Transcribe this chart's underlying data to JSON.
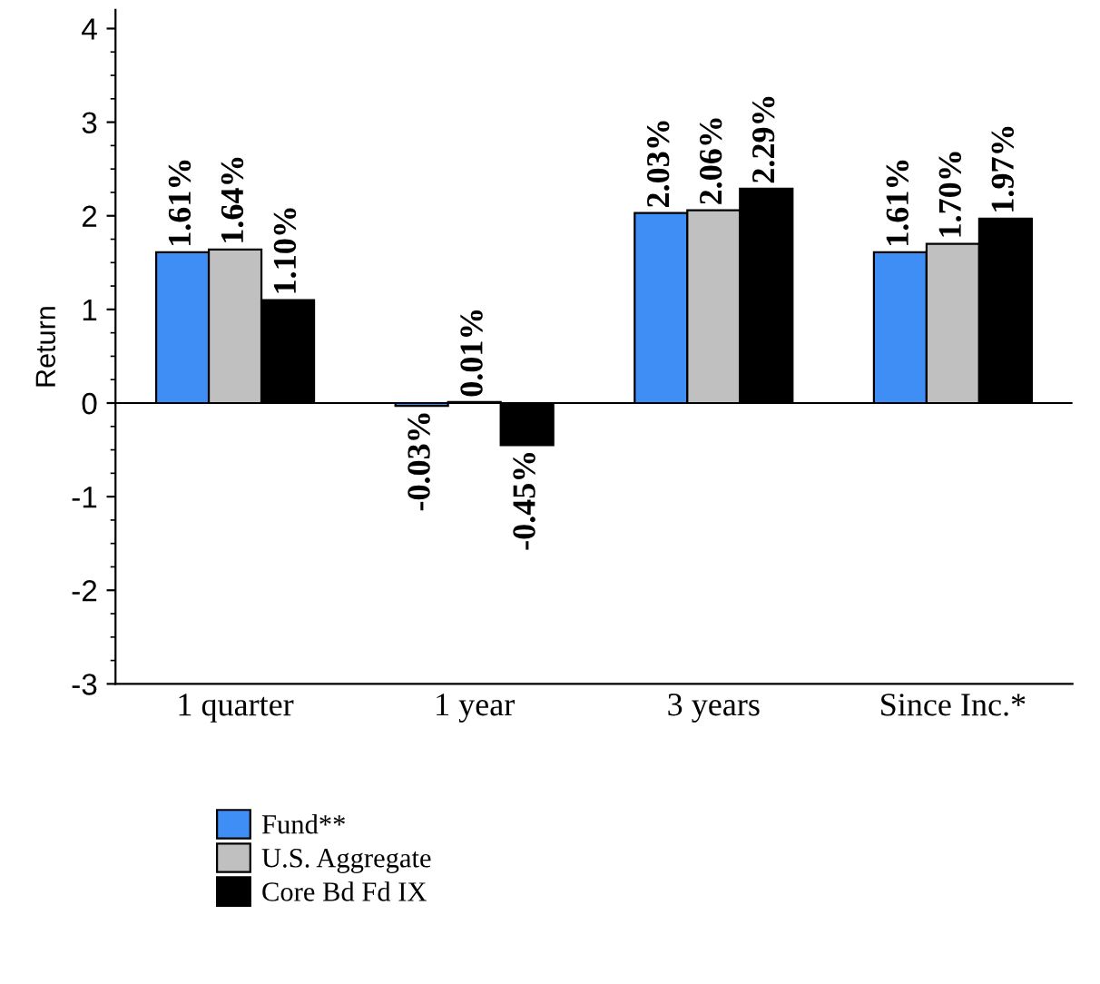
{
  "chart_data": {
    "type": "bar",
    "ylabel": "Return",
    "categories": [
      "1 quarter",
      "1 year",
      "3 years",
      "Since Inc.*"
    ],
    "series": [
      {
        "name": "Fund**",
        "color": "#3f8ef5",
        "values": [
          1.61,
          -0.03,
          2.03,
          1.61
        ],
        "value_labels": [
          "1.61%",
          "-0.03%",
          "2.03%",
          "1.61%"
        ]
      },
      {
        "name": "U.S. Aggregate",
        "color": "#c0c0c0",
        "values": [
          1.64,
          0.01,
          2.06,
          1.7
        ],
        "value_labels": [
          "1.64%",
          "0.01%",
          "2.06%",
          "1.70%"
        ]
      },
      {
        "name": "Core Bd Fd IX",
        "color": "#000000",
        "values": [
          1.1,
          -0.45,
          2.29,
          1.97
        ],
        "value_labels": [
          "1.10%",
          "-0.45%",
          "2.29%",
          "1.97%"
        ]
      }
    ],
    "ylim": [
      -3,
      4.2
    ],
    "yticks": [
      -3,
      -2,
      -1,
      0,
      1,
      2,
      3,
      4
    ],
    "ref_lines": [
      {
        "axis": "y",
        "value": 0,
        "color": "#000000"
      }
    ],
    "legend": "bottom"
  }
}
